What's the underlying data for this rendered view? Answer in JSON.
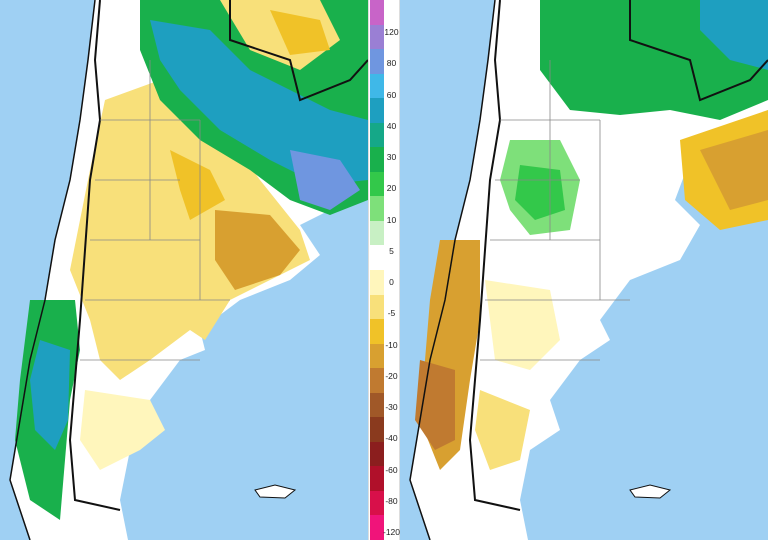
{
  "legend": {
    "labels": [
      "120",
      "80",
      "60",
      "40",
      "30",
      "20",
      "10",
      "5",
      "0",
      "-5",
      "-10",
      "-20",
      "-30",
      "-40",
      "-60",
      "-80",
      "-120"
    ],
    "colors": [
      "#c864c8",
      "#9a7fd4",
      "#6f96e0",
      "#3fb8e8",
      "#1e9fc0",
      "#15a888",
      "#19b04c",
      "#33c84a",
      "#7ee07a",
      "#c8f0c4",
      "#ffffff",
      "#fff6bc",
      "#f8e07a",
      "#f0c228",
      "#d8a030",
      "#c07a30",
      "#a05828",
      "#8a3a1e",
      "#8b1e1e",
      "#b0102a",
      "#d8104a",
      "#f0147a"
    ]
  },
  "maps": {
    "left": {},
    "right": {}
  }
}
